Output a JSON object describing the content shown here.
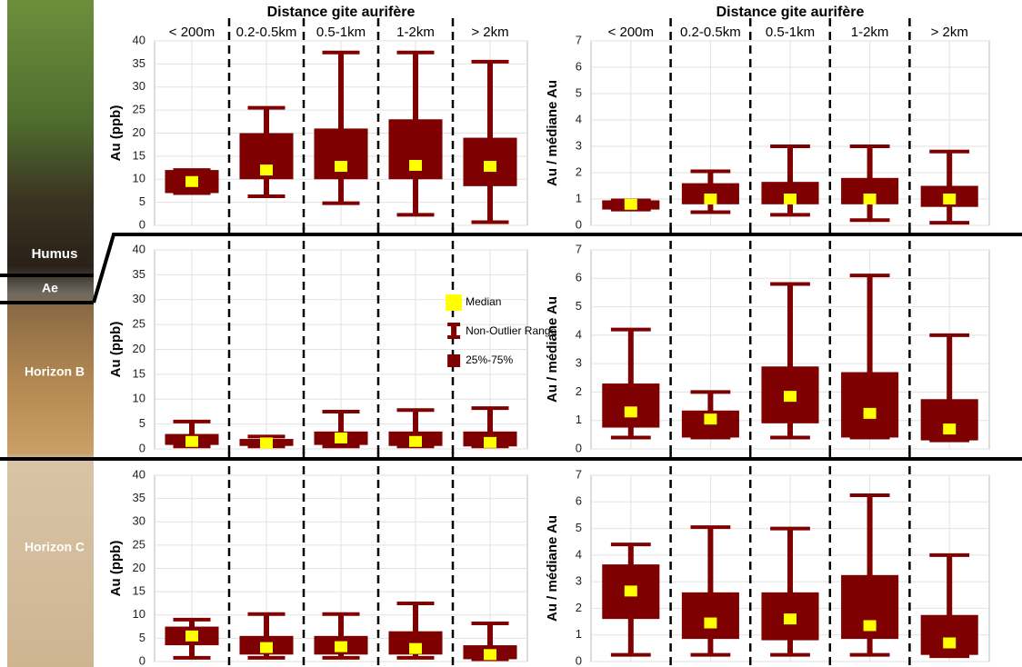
{
  "profile": {
    "layers": [
      "Humus",
      "Ae",
      "Horizon B",
      "Horizon C"
    ]
  },
  "chart_data": [
    {
      "type": "box",
      "xlabel": "Distance gite aurifère",
      "ylabel": "Au (ppb)",
      "categories": [
        "< 200m",
        "0.2-0.5km",
        "0.5-1km",
        "1-2km",
        "> 2km"
      ],
      "ylim": [
        0,
        40
      ],
      "yticks": [
        0,
        5,
        10,
        15,
        20,
        25,
        30,
        35,
        40
      ],
      "grid": true,
      "color": "#7f0000",
      "median_color": "#ffff00",
      "boxes": {
        "min": [
          7,
          6.3,
          4.8,
          2.3,
          0.7
        ],
        "q1": [
          7,
          10,
          10,
          10,
          8.5
        ],
        "median": [
          9.5,
          12,
          12.8,
          13,
          12.8
        ],
        "q3": [
          12,
          20,
          21,
          23,
          19
        ],
        "max": [
          12,
          25.5,
          37.5,
          37.5,
          35.5
        ]
      }
    },
    {
      "type": "box",
      "xlabel": "Distance gite aurifère",
      "ylabel": "Au / médiane Au",
      "categories": [
        "< 200m",
        "0.2-0.5km",
        "0.5-1km",
        "1-2km",
        "> 2km"
      ],
      "ylim": [
        0,
        7
      ],
      "yticks": [
        0,
        1,
        2,
        3,
        4,
        5,
        6,
        7
      ],
      "grid": true,
      "color": "#7f0000",
      "median_color": "#ffff00",
      "boxes": {
        "min": [
          0.6,
          0.5,
          0.4,
          0.2,
          0.1
        ],
        "q1": [
          0.6,
          0.8,
          0.8,
          0.8,
          0.7
        ],
        "median": [
          0.8,
          1.0,
          1.0,
          1.0,
          1.0
        ],
        "q3": [
          0.95,
          1.6,
          1.65,
          1.8,
          1.5
        ],
        "max": [
          0.95,
          2.05,
          3.0,
          3.0,
          2.8
        ]
      }
    },
    {
      "type": "box",
      "ylabel": "Au (ppb)",
      "ylim": [
        0,
        40
      ],
      "yticks": [
        0,
        5,
        10,
        15,
        20,
        25,
        30,
        35,
        40
      ],
      "grid": true,
      "color": "#7f0000",
      "median_color": "#ffff00",
      "legend": [
        "Median",
        "Non-Outlier Range",
        "25%-75%"
      ],
      "boxes": {
        "min": [
          0.5,
          0.5,
          0.5,
          0.5,
          0.5
        ],
        "q1": [
          0.8,
          0.6,
          0.8,
          0.6,
          0.5
        ],
        "median": [
          1.5,
          1.2,
          2.2,
          1.5,
          1.3
        ],
        "q3": [
          3,
          2,
          3.5,
          3.5,
          3.5
        ],
        "max": [
          5.5,
          2.5,
          7.5,
          7.8,
          8.2
        ]
      }
    },
    {
      "type": "box",
      "ylabel": "Au / médiane Au",
      "ylim": [
        0,
        7
      ],
      "yticks": [
        0,
        1,
        2,
        3,
        4,
        5,
        6,
        7
      ],
      "grid": true,
      "color": "#7f0000",
      "median_color": "#ffff00",
      "boxes": {
        "min": [
          0.4,
          0.4,
          0.4,
          0.4,
          0.3
        ],
        "q1": [
          0.75,
          0.4,
          0.9,
          0.4,
          0.3
        ],
        "median": [
          1.3,
          1.05,
          1.85,
          1.25,
          0.7
        ],
        "q3": [
          2.3,
          1.35,
          2.9,
          2.7,
          1.75
        ],
        "max": [
          4.2,
          2.0,
          5.8,
          6.1,
          4.0
        ]
      }
    },
    {
      "type": "box",
      "ylabel": "Au (ppb)",
      "ylim": [
        0,
        40
      ],
      "yticks": [
        0,
        5,
        10,
        15,
        20,
        25,
        30,
        35,
        40
      ],
      "grid": true,
      "color": "#7f0000",
      "median_color": "#ffff00",
      "boxes": {
        "min": [
          0.8,
          0.8,
          0.8,
          0.8,
          0.5
        ],
        "q1": [
          3.5,
          1.5,
          1.5,
          1.5,
          0.5
        ],
        "median": [
          5.5,
          3,
          3.2,
          2.8,
          1.5
        ],
        "q3": [
          7.5,
          5.5,
          5.5,
          6.5,
          3.5
        ],
        "max": [
          9,
          10.2,
          10.2,
          12.5,
          8.2
        ]
      }
    },
    {
      "type": "box",
      "ylabel": "Au / médiane Au",
      "ylim": [
        0,
        7
      ],
      "yticks": [
        0,
        1,
        2,
        3,
        4,
        5,
        6,
        7
      ],
      "grid": true,
      "color": "#7f0000",
      "median_color": "#ffff00",
      "boxes": {
        "min": [
          0.25,
          0.25,
          0.25,
          0.25,
          0.2
        ],
        "q1": [
          1.6,
          0.85,
          0.8,
          0.85,
          0.25
        ],
        "median": [
          2.65,
          1.45,
          1.6,
          1.35,
          0.7
        ],
        "q3": [
          3.65,
          2.6,
          2.6,
          3.25,
          1.75
        ],
        "max": [
          4.4,
          5.05,
          5.0,
          6.25,
          4.0
        ]
      }
    }
  ]
}
